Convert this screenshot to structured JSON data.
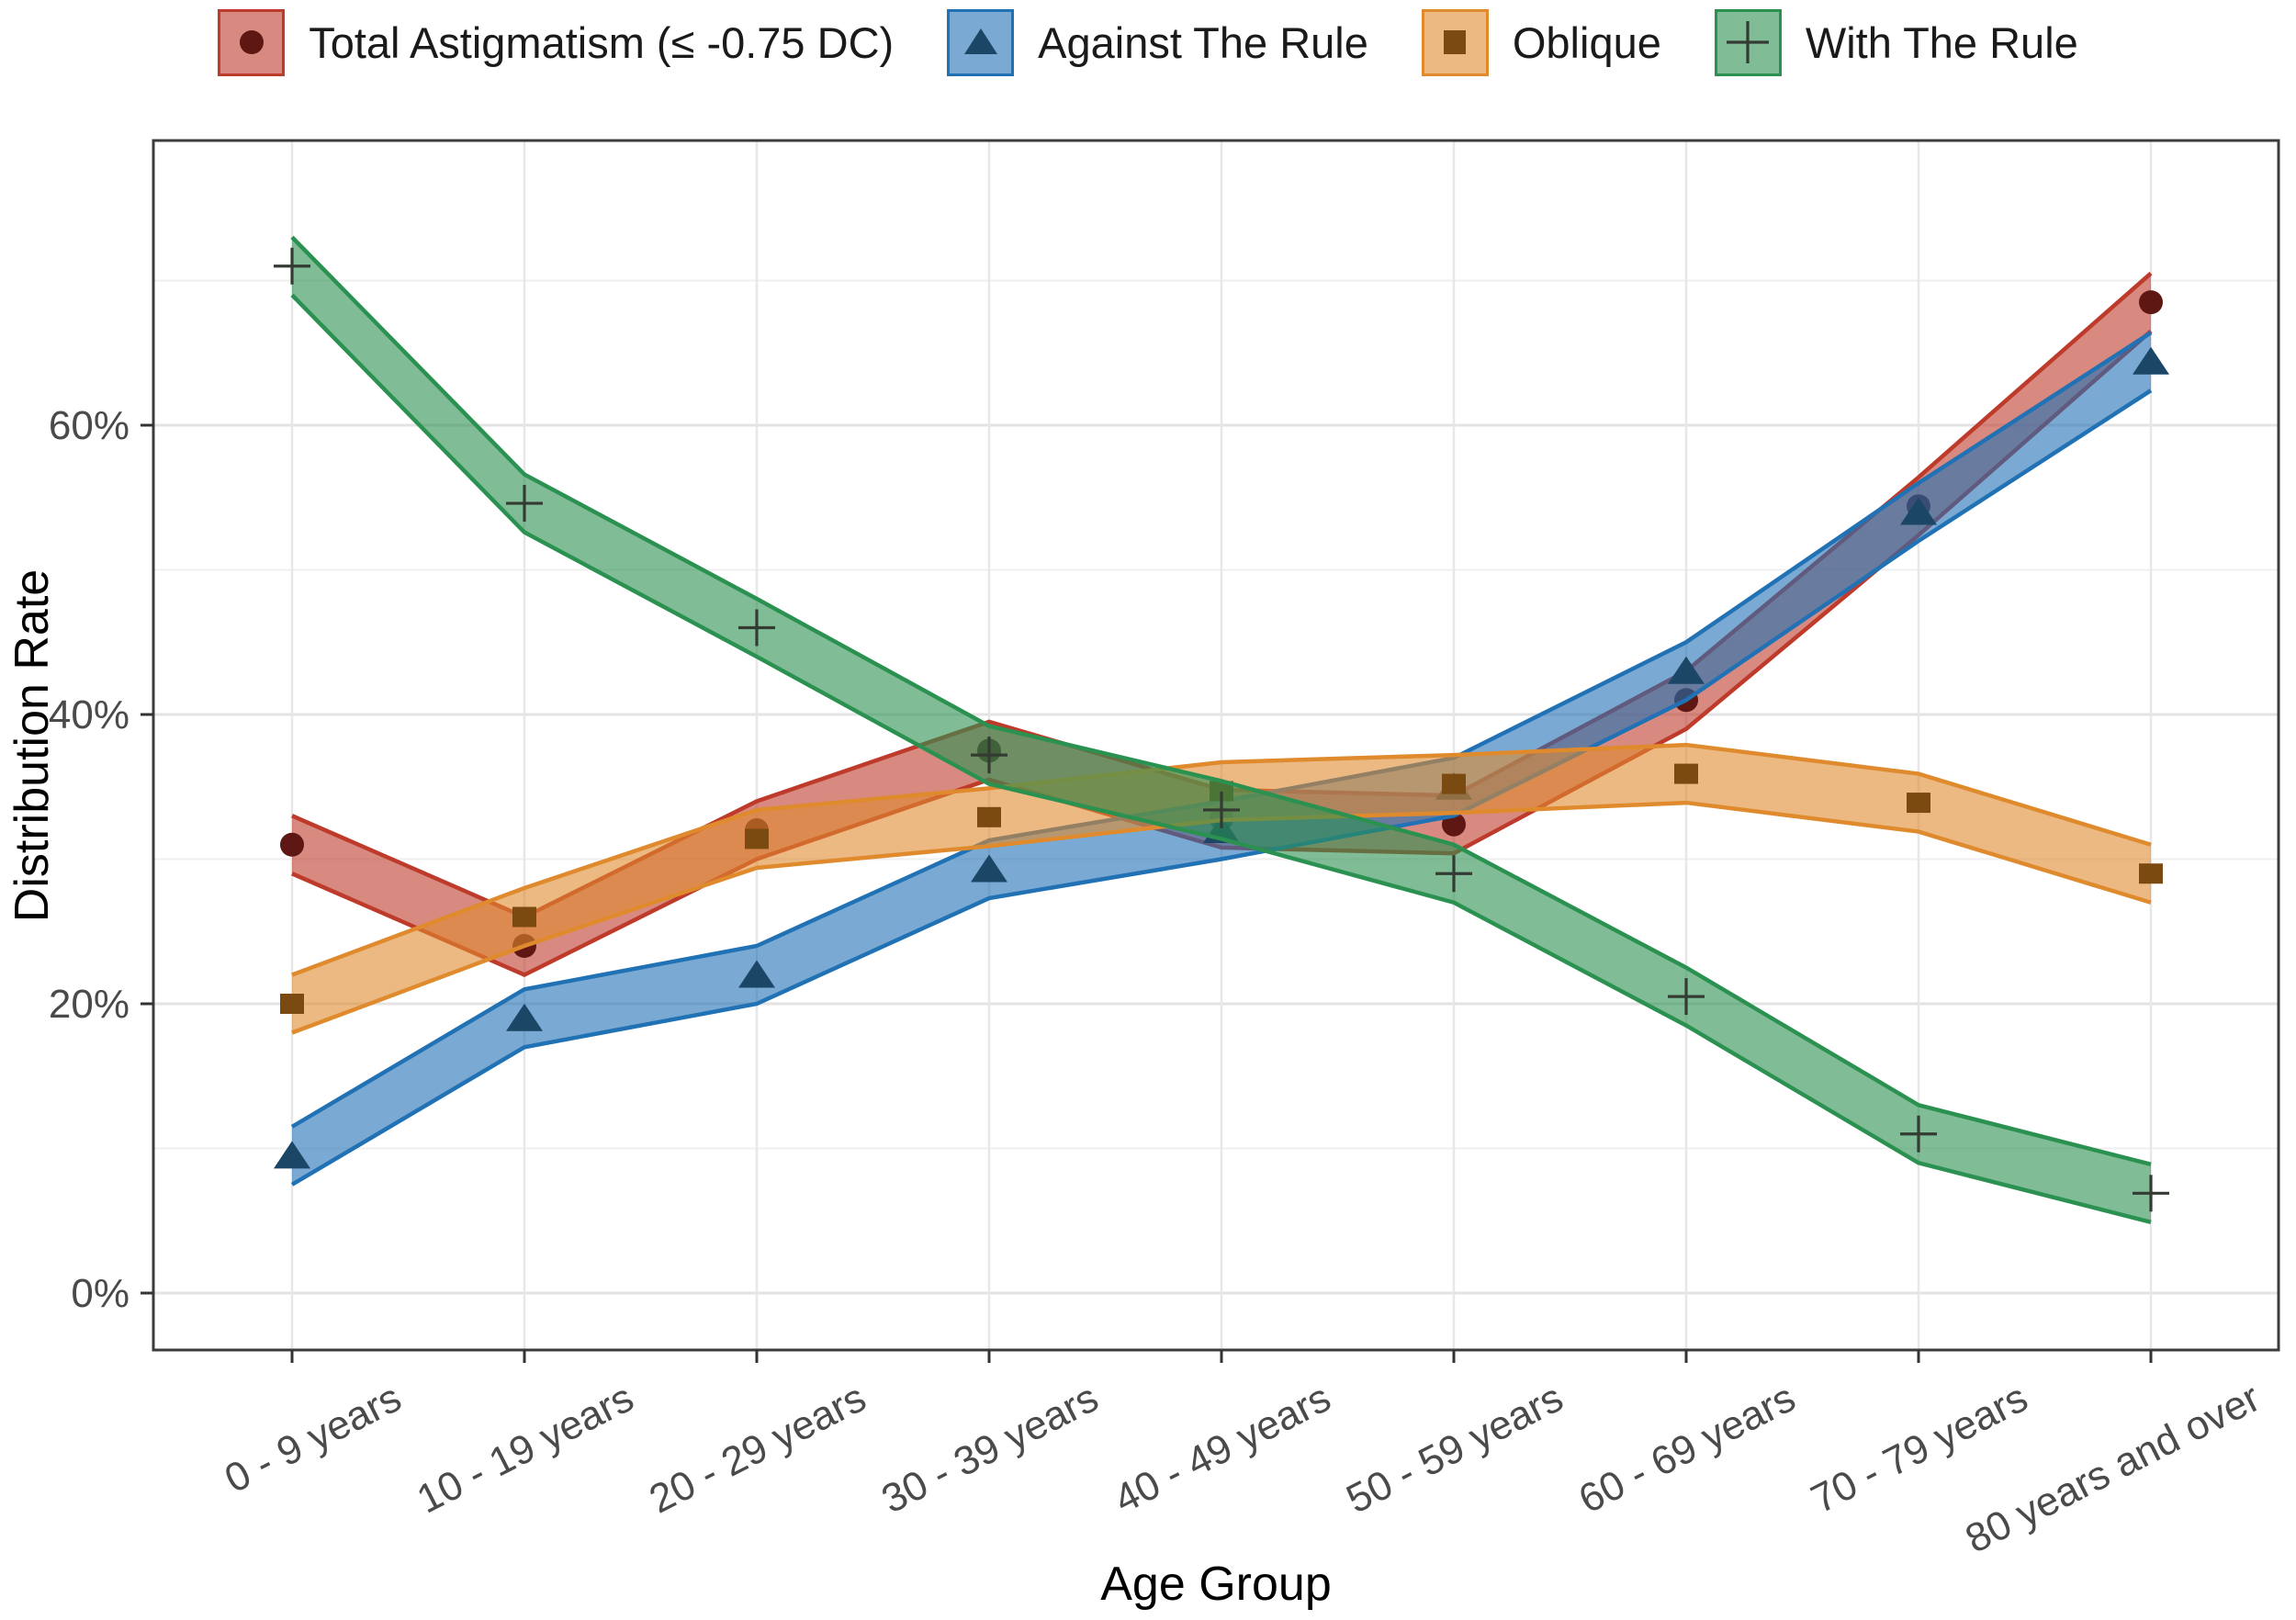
{
  "figure": {
    "y_axis_title": "Distribution Rate",
    "x_axis_title": "Age Group",
    "y_tick_labels": [
      "0%",
      "20%",
      "40%",
      "60%"
    ],
    "y_tick_values": [
      0,
      20,
      40,
      60
    ]
  },
  "chart_data": {
    "type": "line",
    "title": "",
    "xlabel": "Age Group",
    "ylabel": "Distribution Rate",
    "ylim": [
      -4,
      80
    ],
    "grid": "on",
    "legend_position": "top",
    "band_halfwidth_percent": 2,
    "categories": [
      "0 - 9 years",
      "10 - 19 years",
      "20 - 29 years",
      "30 - 39 years",
      "40 - 49 years",
      "50 - 59 years",
      "60 - 69 years",
      "70 - 79 years",
      "80 years and over"
    ],
    "series": [
      {
        "name": "Total Astigmatism (≤ -0.75 DC)",
        "marker": "circle",
        "marker_icon_name": "circle-marker-icon",
        "values": [
          31,
          24,
          32,
          37.5,
          32.8,
          32.4,
          41,
          54.4,
          68.5
        ],
        "line_color": "#BE3B2B",
        "fill_color": "#D88980",
        "marker_color": "#5E1712"
      },
      {
        "name": "Against The Rule",
        "marker": "triangle",
        "marker_icon_name": "triangle-marker-icon",
        "values": [
          9.5,
          19,
          22,
          29.3,
          32,
          35,
          43,
          54,
          64.4
        ],
        "line_color": "#2171B5",
        "fill_color": "#7AAAD3",
        "marker_color": "#1B4665"
      },
      {
        "name": "Oblique",
        "marker": "square",
        "marker_icon_name": "square-marker-icon",
        "values": [
          20,
          26,
          31.4,
          32.9,
          34.7,
          35.2,
          35.9,
          33.9,
          29
        ],
        "line_color": "#E08A2E",
        "fill_color": "#ECB982",
        "marker_color": "#7B4A10"
      },
      {
        "name": "With The Rule",
        "marker": "plus",
        "marker_icon_name": "plus-marker-icon",
        "values": [
          71,
          54.6,
          46,
          37.2,
          33.4,
          29,
          20.5,
          11,
          6.9
        ],
        "line_color": "#2B9151",
        "fill_color": "#80BD97",
        "marker_color": "#333B33"
      }
    ]
  }
}
